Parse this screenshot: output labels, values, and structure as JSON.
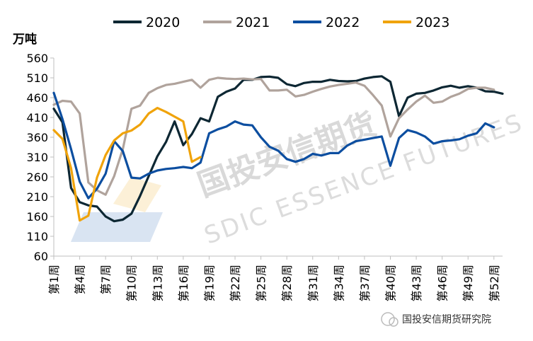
{
  "chart_data": {
    "type": "line",
    "unit_label": "万吨",
    "ylim": [
      60,
      560
    ],
    "yticks": [
      60,
      110,
      160,
      210,
      260,
      310,
      360,
      410,
      460,
      510,
      560
    ],
    "grid": false,
    "legend_position": "top",
    "categories": [
      "第1周",
      "第2周",
      "第3周",
      "第4周",
      "第5周",
      "第6周",
      "第7周",
      "第8周",
      "第9周",
      "第10周",
      "第11周",
      "第12周",
      "第13周",
      "第14周",
      "第15周",
      "第16周",
      "第17周",
      "第18周",
      "第19周",
      "第20周",
      "第21周",
      "第22周",
      "第23周",
      "第24周",
      "第25周",
      "第26周",
      "第27周",
      "第28周",
      "第29周",
      "第30周",
      "第31周",
      "第32周",
      "第33周",
      "第34周",
      "第35周",
      "第36周",
      "第37周",
      "第38周",
      "第39周",
      "第40周",
      "第41周",
      "第42周",
      "第43周",
      "第44周",
      "第45周",
      "第46周",
      "第47周",
      "第48周",
      "第49周",
      "第50周",
      "第51周",
      "第52周",
      "第53周"
    ],
    "tick_labels": [
      "第1周",
      "第4周",
      "第7周",
      "第10周",
      "第13周",
      "第16周",
      "第19周",
      "第22周",
      "第25周",
      "第28周",
      "第31周",
      "第34周",
      "第37周",
      "第40周",
      "第43周",
      "第46周",
      "第49周",
      "第52周"
    ],
    "series": [
      {
        "name": "2020",
        "color": "#0d2733",
        "values": [
          432,
          398,
          232,
          196,
          188,
          185,
          160,
          148,
          152,
          167,
          212,
          262,
          312,
          348,
          400,
          340,
          368,
          408,
          400,
          462,
          475,
          483,
          505,
          505,
          512,
          513,
          510,
          494,
          489,
          497,
          500,
          500,
          505,
          502,
          501,
          502,
          508,
          512,
          514,
          500,
          413,
          460,
          470,
          472,
          478,
          486,
          490,
          485,
          489,
          485,
          476,
          475,
          470
        ]
      },
      {
        "name": "2021",
        "color": "#b0a39c",
        "values": [
          442,
          452,
          450,
          420,
          246,
          226,
          215,
          262,
          330,
          432,
          440,
          472,
          484,
          492,
          495,
          500,
          505,
          485,
          505,
          510,
          508,
          507,
          508,
          506,
          507,
          478,
          478,
          480,
          463,
          467,
          475,
          482,
          488,
          492,
          495,
          498,
          490,
          466,
          440,
          362,
          408,
          430,
          450,
          465,
          447,
          450,
          462,
          470,
          482,
          485,
          485,
          480,
          null
        ]
      },
      {
        "name": "2022",
        "color": "#0c4ea0",
        "values": [
          472,
          406,
          330,
          248,
          206,
          230,
          268,
          350,
          325,
          258,
          256,
          268,
          276,
          280,
          282,
          285,
          282,
          296,
          370,
          380,
          387,
          400,
          392,
          390,
          360,
          336,
          326,
          305,
          298,
          305,
          318,
          314,
          320,
          320,
          339,
          350,
          354,
          358,
          362,
          288,
          358,
          378,
          372,
          362,
          344,
          350,
          352,
          355,
          364,
          370,
          395,
          385,
          null
        ]
      },
      {
        "name": "2023",
        "color": "#f0a30a",
        "values": [
          378,
          356,
          282,
          150,
          162,
          258,
          315,
          352,
          370,
          377,
          392,
          420,
          434,
          424,
          412,
          400,
          298,
          310,
          null,
          null,
          null,
          null,
          null,
          null,
          null,
          null,
          null,
          null,
          null,
          null,
          null,
          null,
          null,
          null,
          null,
          null,
          null,
          null,
          null,
          null,
          null,
          null,
          null,
          null,
          null,
          null,
          null,
          null,
          null,
          null,
          null,
          null,
          null
        ]
      }
    ]
  },
  "watermark": {
    "brand": "国投安信期货",
    "sub": "SDIC ESSENCE FUTURES"
  },
  "credit": {
    "text": "国投安信期货研究院"
  }
}
